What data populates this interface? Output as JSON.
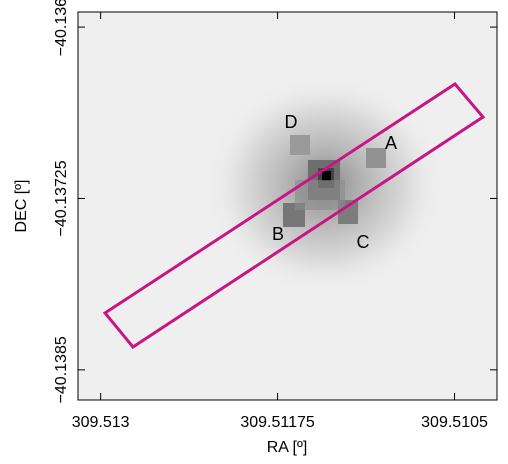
{
  "chart_data": {
    "type": "image",
    "x_label": "RA [º]",
    "y_label": "DEC [º]",
    "xlim": [
      309.51316,
      309.5102
    ],
    "xticks": [
      309.513,
      309.51175,
      309.5105
    ],
    "ylim": [
      -40.13589,
      -40.13872
    ],
    "yticks": [
      {
        "value": -40.136,
        "label": "−40.136"
      },
      {
        "value": -40.13725,
        "label": "−40.13725"
      },
      {
        "value": -40.1385,
        "label": "−40.1385"
      }
    ],
    "annotations": [
      "A",
      "B",
      "C",
      "D"
    ],
    "slit_color": "#c71585"
  }
}
